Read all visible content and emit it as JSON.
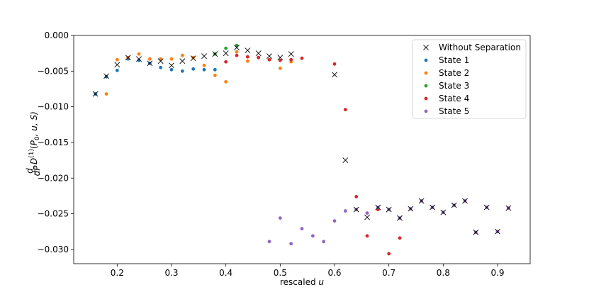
{
  "chart_data": {
    "type": "scatter",
    "title": "",
    "xlabel": "rescaled",
    "xlabel_var": "u",
    "ylabel": {
      "frac_num": "d",
      "frac_den": "dP",
      "base": "D",
      "sup": "(1)",
      "args_open": "(",
      "P": "P",
      "P_sub": "0",
      "rest": ", u, S)"
    },
    "xlim": [
      0.12,
      0.96
    ],
    "ylim": [
      -0.032,
      0.0
    ],
    "xticks": [
      0.2,
      0.3,
      0.4,
      0.5,
      0.6,
      0.7,
      0.8,
      0.9
    ],
    "xtick_labels": [
      "0.2",
      "0.3",
      "0.4",
      "0.5",
      "0.6",
      "0.7",
      "0.8",
      "0.9"
    ],
    "yticks": [
      0.0,
      -0.005,
      -0.01,
      -0.015,
      -0.02,
      -0.025,
      -0.03
    ],
    "ytick_labels": [
      "0.000",
      "−0.005",
      "−0.010",
      "−0.015",
      "−0.020",
      "−0.025",
      "−0.030"
    ],
    "grid": false,
    "legend_position": "top-right",
    "series": [
      {
        "name": "Without Separation",
        "marker": "x",
        "color": "#000000",
        "x": [
          0.16,
          0.18,
          0.2,
          0.22,
          0.24,
          0.26,
          0.28,
          0.3,
          0.32,
          0.34,
          0.36,
          0.38,
          0.4,
          0.42,
          0.44,
          0.46,
          0.48,
          0.5,
          0.52,
          0.6,
          0.62,
          0.64,
          0.66,
          0.68,
          0.7,
          0.72,
          0.74,
          0.76,
          0.78,
          0.8,
          0.82,
          0.84,
          0.86,
          0.88,
          0.9,
          0.92
        ],
        "y": [
          -0.0082,
          -0.0057,
          -0.0041,
          -0.0031,
          -0.0033,
          -0.0039,
          -0.0036,
          -0.0042,
          -0.0036,
          -0.0032,
          -0.0029,
          -0.0026,
          -0.0025,
          -0.0017,
          -0.0021,
          -0.0025,
          -0.0029,
          -0.0031,
          -0.0026,
          -0.0055,
          -0.0175,
          -0.0244,
          -0.0255,
          -0.0241,
          -0.0244,
          -0.0256,
          -0.0243,
          -0.0232,
          -0.0241,
          -0.0248,
          -0.0238,
          -0.0232,
          -0.0276,
          -0.0241,
          -0.0275,
          -0.0242
        ]
      },
      {
        "name": "State 1",
        "marker": "o",
        "color": "#1f77b4",
        "x": [
          0.16,
          0.18,
          0.2,
          0.22,
          0.24,
          0.26,
          0.28,
          0.3,
          0.32,
          0.34,
          0.36,
          0.38
        ],
        "y": [
          -0.0082,
          -0.0058,
          -0.0049,
          -0.0033,
          -0.0035,
          -0.0039,
          -0.0045,
          -0.0048,
          -0.005,
          -0.0047,
          -0.0048,
          -0.0048
        ]
      },
      {
        "name": "State 2",
        "marker": "o",
        "color": "#ff7f0e",
        "x": [
          0.18,
          0.2,
          0.22,
          0.24,
          0.26,
          0.28,
          0.3,
          0.32,
          0.34,
          0.36,
          0.38,
          0.4,
          0.42,
          0.44,
          0.46,
          0.48,
          0.5,
          0.52
        ],
        "y": [
          -0.0082,
          -0.0034,
          -0.0031,
          -0.0026,
          -0.0033,
          -0.0033,
          -0.0033,
          -0.0028,
          -0.0031,
          -0.0042,
          -0.0056,
          -0.0065,
          -0.0023,
          -0.0036,
          -0.0031,
          -0.0034,
          -0.0046,
          -0.0037
        ]
      },
      {
        "name": "State 3",
        "marker": "o",
        "color": "#2ca02c",
        "x": [
          0.38,
          0.4,
          0.42
        ],
        "y": [
          -0.0026,
          -0.0018,
          -0.0014
        ]
      },
      {
        "name": "State 4",
        "marker": "o",
        "color": "#d62728",
        "x": [
          0.4,
          0.42,
          0.44,
          0.46,
          0.48,
          0.5,
          0.52,
          0.54,
          0.6,
          0.62,
          0.64,
          0.66,
          0.68,
          0.7,
          0.72
        ],
        "y": [
          -0.0037,
          -0.0028,
          -0.003,
          -0.0031,
          -0.0034,
          -0.0035,
          -0.0034,
          -0.0032,
          -0.004,
          -0.0104,
          -0.0226,
          -0.0281,
          -0.0244,
          -0.0306,
          -0.0284
        ]
      },
      {
        "name": "State 5",
        "marker": "o",
        "color": "#9467bd",
        "x": [
          0.48,
          0.5,
          0.52,
          0.54,
          0.56,
          0.58,
          0.6,
          0.62,
          0.64,
          0.66,
          0.68,
          0.7,
          0.72,
          0.74,
          0.76,
          0.78,
          0.8,
          0.82,
          0.84,
          0.86,
          0.88,
          0.9,
          0.92
        ],
        "y": [
          -0.0289,
          -0.0256,
          -0.0292,
          -0.0271,
          -0.0281,
          -0.0289,
          -0.026,
          -0.0246,
          -0.0244,
          -0.0249,
          -0.0241,
          -0.0244,
          -0.0256,
          -0.0243,
          -0.0232,
          -0.0241,
          -0.0248,
          -0.0238,
          -0.0232,
          -0.0276,
          -0.0241,
          -0.0275,
          -0.0242
        ]
      }
    ]
  }
}
